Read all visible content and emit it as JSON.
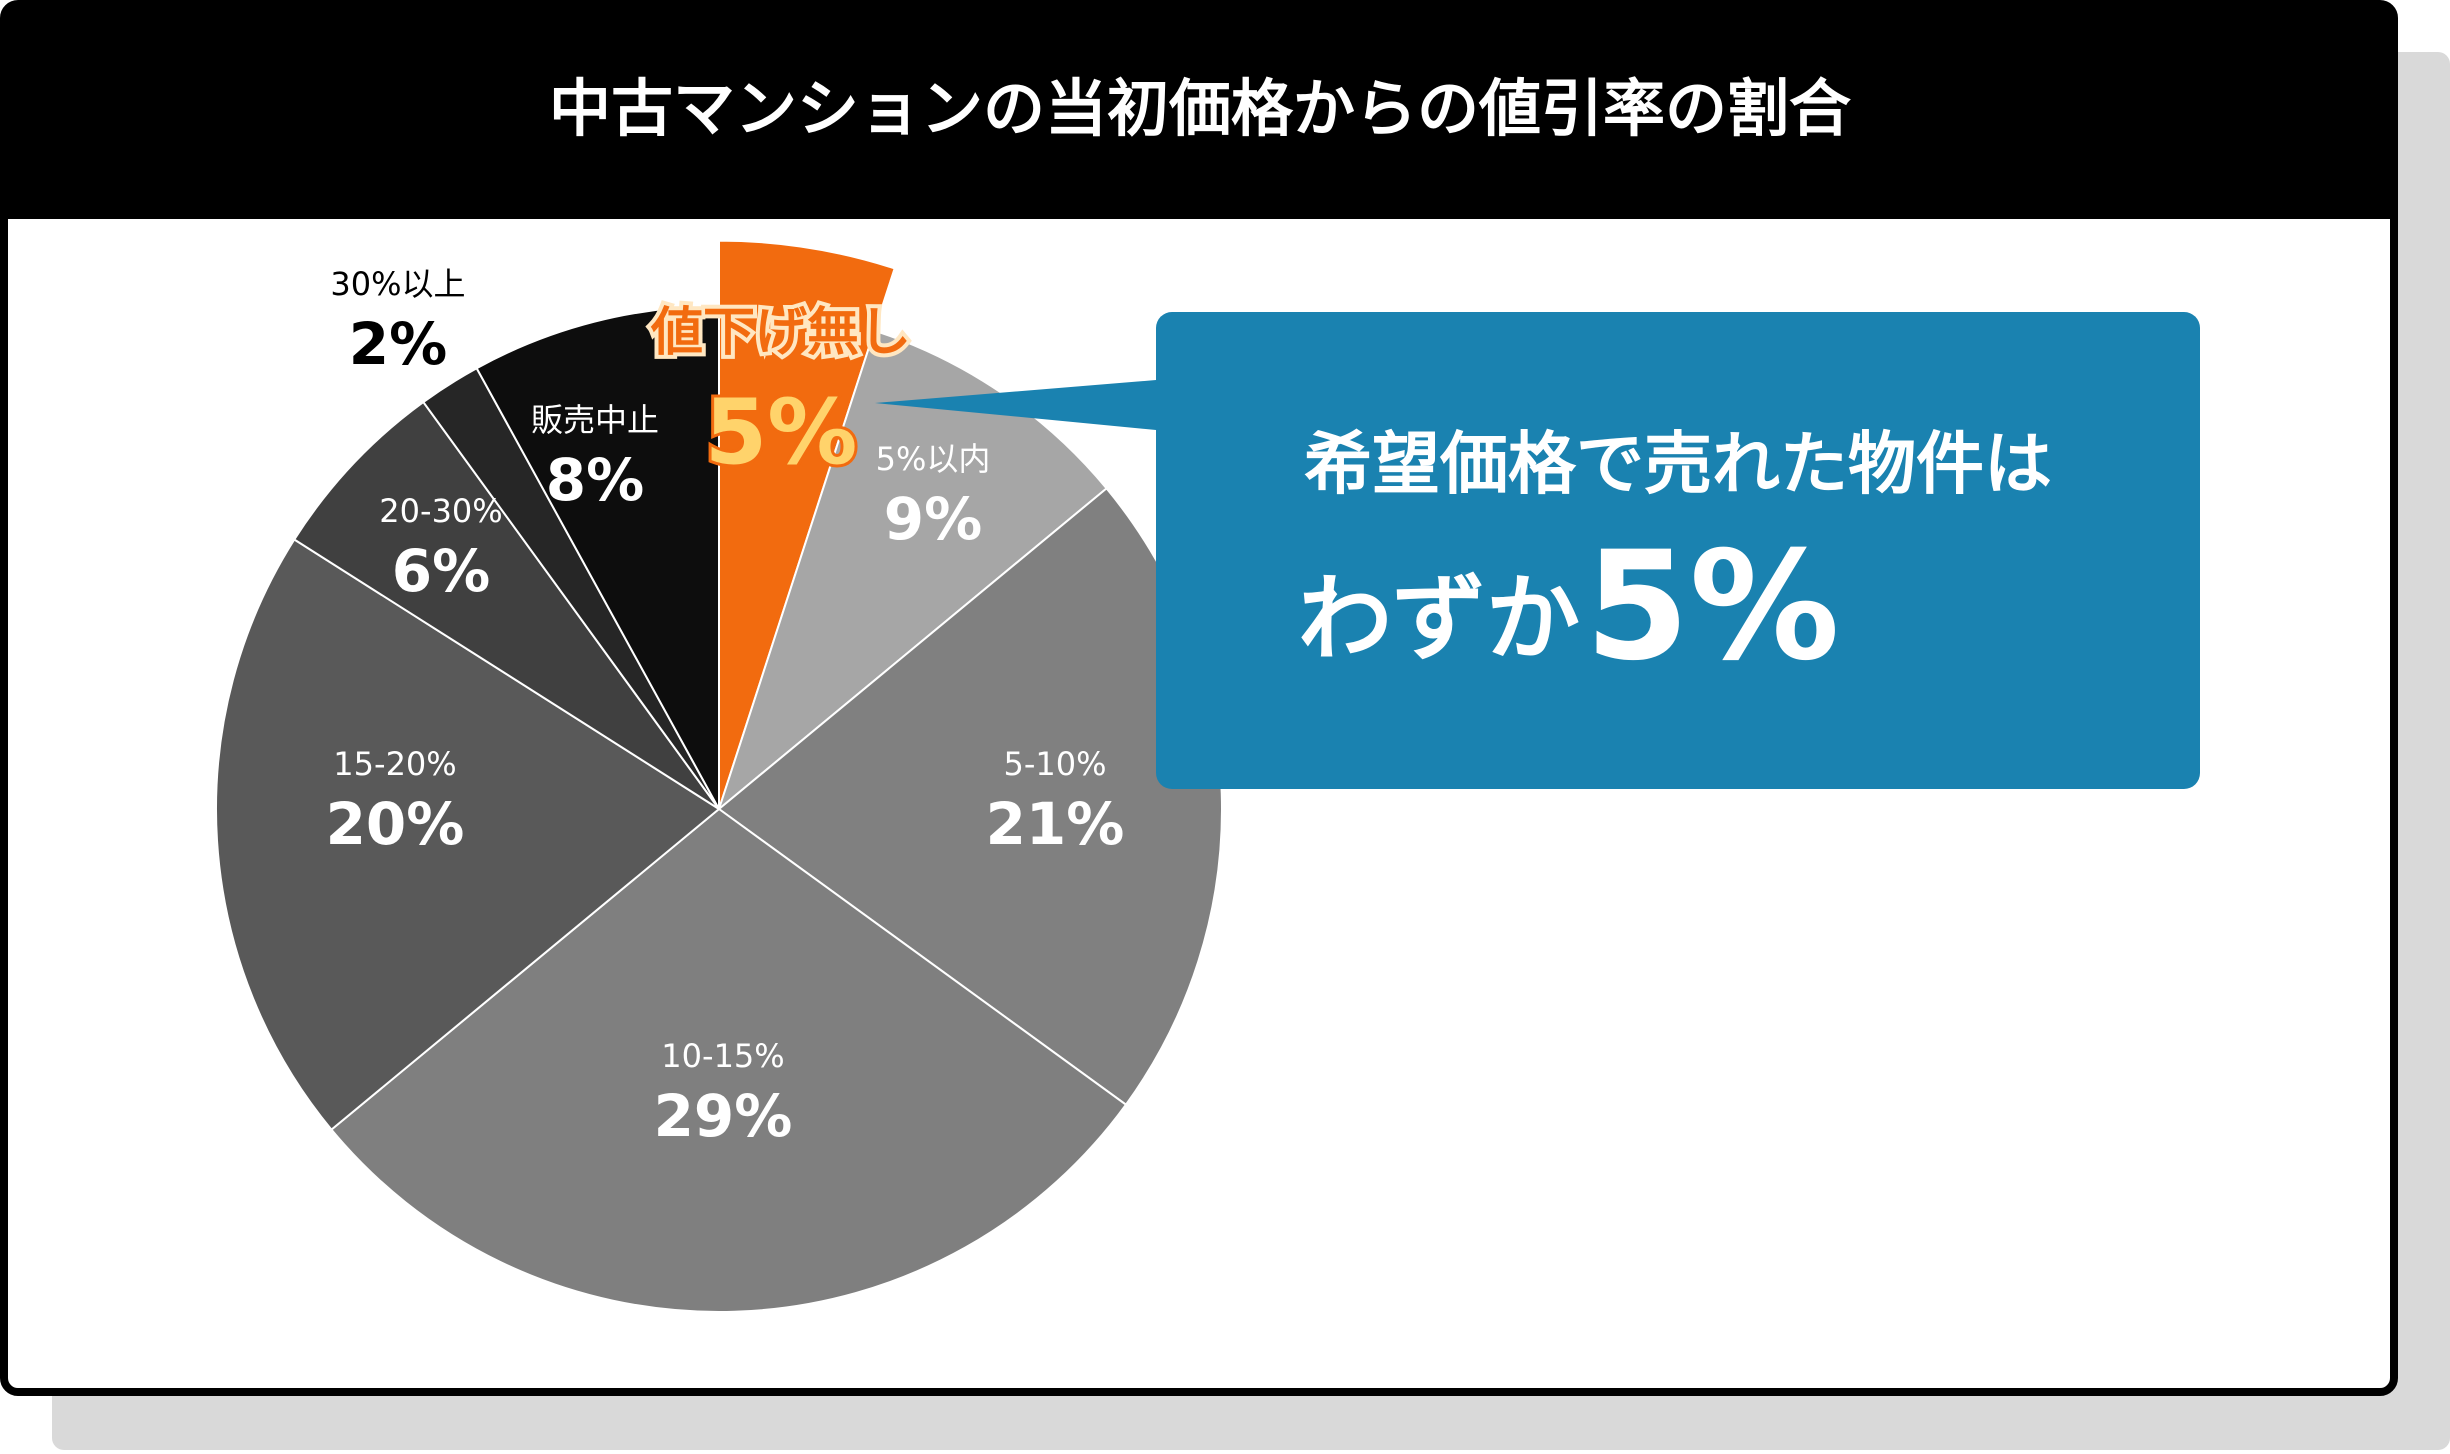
{
  "chart_data": {
    "type": "pie",
    "title": "中古マンションの当初価格からの値引率の割合",
    "categories": [
      "値下げ無し",
      "5%以内",
      "5-10%",
      "10-15%",
      "15-20%",
      "20-30%",
      "30%以上",
      "販売中止"
    ],
    "values": [
      5,
      9,
      21,
      29,
      20,
      6,
      2,
      8
    ],
    "value_labels": [
      "5%",
      "9%",
      "21%",
      "29%",
      "20%",
      "6%",
      "2%",
      "8%"
    ],
    "colors": [
      "#f26b0f",
      "#a6a6a6",
      "#808080",
      "#7f7f7f",
      "#595959",
      "#404040",
      "#262626",
      "#0d0d0d"
    ],
    "annotations": [
      "希望価格で売れた物件は",
      "わずか",
      "5%"
    ]
  }
}
